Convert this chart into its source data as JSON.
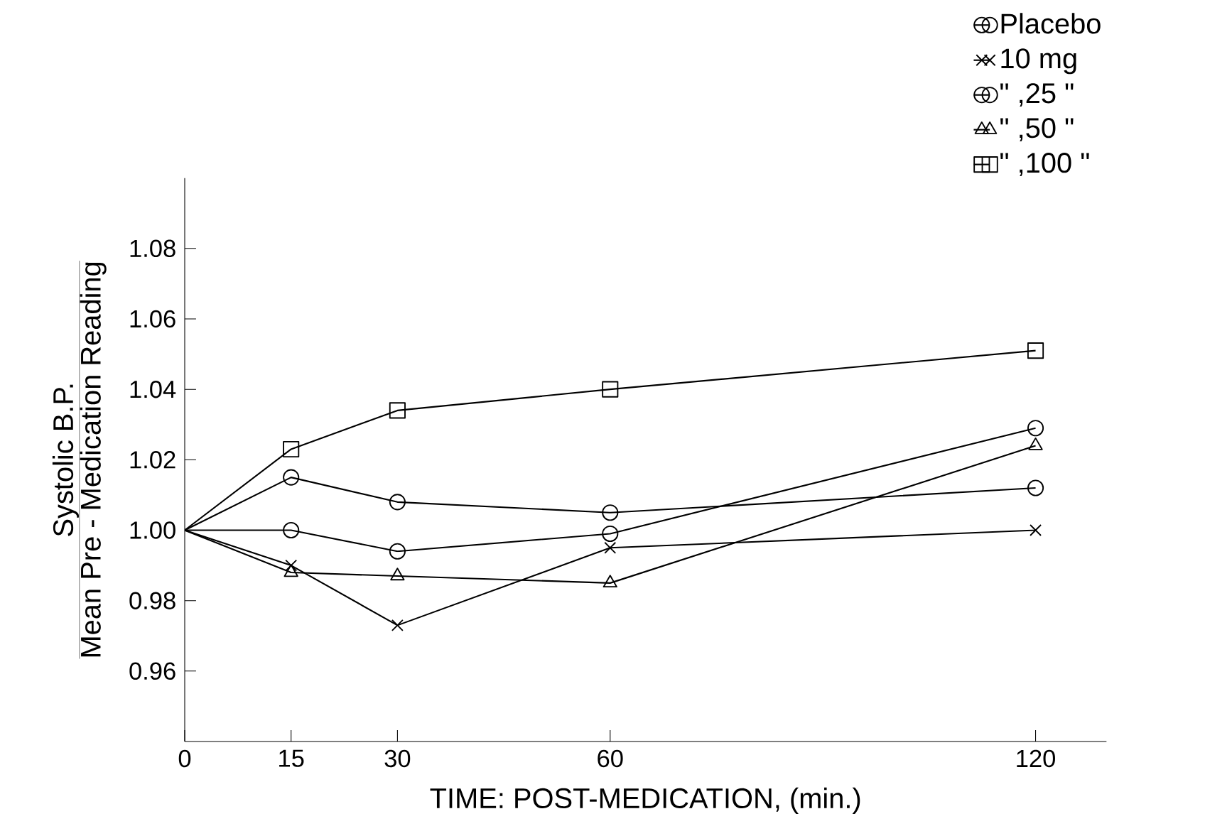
{
  "chart_data": {
    "type": "line",
    "xlabel": "TIME: POST-MEDICATION, (min.)",
    "ylabel": "\\frac{\\mbox{Systolic B.P.}}{\\mbox{Mean Pre - Medication Reading}}",
    "x": [
      0,
      15,
      30,
      60,
      120
    ],
    "xlim": [
      0,
      130
    ],
    "xticks": [
      0,
      15,
      30,
      60,
      120
    ],
    "ylim": [
      0.94,
      1.1
    ],
    "yticks": [
      {
        "value": 0.96,
        "label": "0.96"
      },
      {
        "value": 0.98,
        "label": "0.98"
      },
      {
        "value": 1.0,
        "label": "1.00"
      },
      {
        "value": 1.02,
        "label": "1.02"
      },
      {
        "value": 1.04,
        "label": "1.04"
      },
      {
        "value": 1.06,
        "label": "1.06"
      },
      {
        "value": 1.08,
        "label": "1.08"
      }
    ],
    "legend": "top right",
    "series": [
      {
        "name": "Placebo",
        "color": "#000000",
        "marker": "circle",
        "values": [
          1.0,
          1.0,
          0.994,
          0.999,
          1.029
        ]
      },
      {
        "name": "10 mg",
        "color": "#000000",
        "marker": "cross",
        "values": [
          1.0,
          0.99,
          0.973,
          0.995,
          1.0
        ]
      },
      {
        "name": "\" ,25 \"",
        "color": "#000000",
        "marker": "circle",
        "values": [
          1.0,
          1.015,
          1.008,
          1.005,
          1.012
        ]
      },
      {
        "name": "\" ,50 \"",
        "color": "#000000",
        "marker": "triangle",
        "values": [
          1.0,
          0.988,
          0.987,
          0.985,
          1.024
        ]
      },
      {
        "name": "\" ,100 \"",
        "color": "#000000",
        "marker": "square",
        "values": [
          1.0,
          1.023,
          1.034,
          1.04,
          1.051
        ]
      }
    ]
  }
}
